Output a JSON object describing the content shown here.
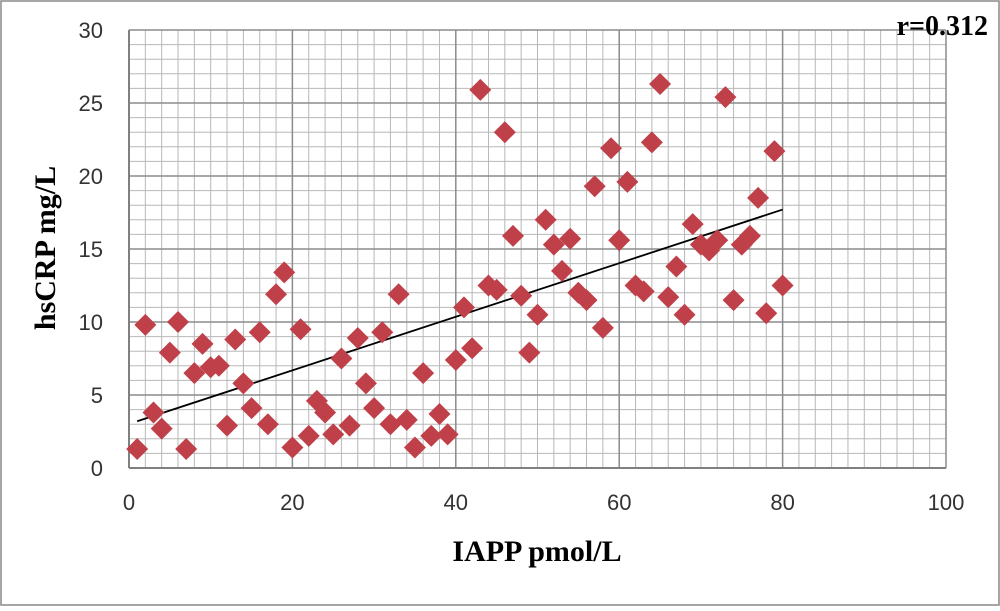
{
  "chart_data": {
    "type": "scatter",
    "title": "",
    "xlabel": "IAPP pmol/L",
    "ylabel": "hsCRP mg/L",
    "annotation": "r=0.312",
    "xlim": [
      0,
      100
    ],
    "ylim": [
      0,
      30
    ],
    "x_ticks": [
      0,
      20,
      40,
      60,
      80,
      100
    ],
    "y_ticks": [
      0,
      5,
      10,
      15,
      20,
      25,
      30
    ],
    "x_minor_step": 2,
    "y_minor_step": 1,
    "grid": true,
    "marker": "diamond",
    "marker_color": "#C0404A",
    "trendline": {
      "type": "linear",
      "x": [
        1,
        80
      ],
      "y": [
        3.2,
        17.7
      ]
    },
    "series": [
      {
        "points": [
          [
            1,
            1.3
          ],
          [
            2,
            9.8
          ],
          [
            3,
            3.8
          ],
          [
            4,
            2.7
          ],
          [
            5,
            7.9
          ],
          [
            6,
            10.0
          ],
          [
            7,
            1.3
          ],
          [
            8,
            6.5
          ],
          [
            9,
            8.5
          ],
          [
            10,
            6.9
          ],
          [
            11,
            7.0
          ],
          [
            12,
            2.9
          ],
          [
            13,
            8.8
          ],
          [
            14,
            5.8
          ],
          [
            15,
            4.1
          ],
          [
            16,
            9.3
          ],
          [
            17,
            3.0
          ],
          [
            18,
            11.9
          ],
          [
            19,
            13.4
          ],
          [
            20,
            1.4
          ],
          [
            21,
            9.5
          ],
          [
            22,
            2.2
          ],
          [
            23,
            4.6
          ],
          [
            24,
            3.8
          ],
          [
            25,
            2.3
          ],
          [
            26,
            7.5
          ],
          [
            27,
            2.9
          ],
          [
            28,
            8.9
          ],
          [
            29,
            5.8
          ],
          [
            30,
            4.1
          ],
          [
            31,
            9.3
          ],
          [
            32,
            3.0
          ],
          [
            33,
            11.9
          ],
          [
            34,
            3.3
          ],
          [
            35,
            1.4
          ],
          [
            36,
            6.5
          ],
          [
            37,
            2.2
          ],
          [
            38,
            3.7
          ],
          [
            39,
            2.3
          ],
          [
            40,
            7.4
          ],
          [
            41,
            11.0
          ],
          [
            42,
            8.2
          ],
          [
            43,
            25.9
          ],
          [
            44,
            12.5
          ],
          [
            45,
            12.2
          ],
          [
            46,
            23.0
          ],
          [
            47,
            15.9
          ],
          [
            48,
            11.8
          ],
          [
            49,
            7.9
          ],
          [
            50,
            10.5
          ],
          [
            51,
            17.0
          ],
          [
            52,
            15.3
          ],
          [
            53,
            13.5
          ],
          [
            54,
            15.7
          ],
          [
            55,
            12.0
          ],
          [
            56,
            11.5
          ],
          [
            57,
            19.3
          ],
          [
            58,
            9.6
          ],
          [
            59,
            21.9
          ],
          [
            60,
            15.6
          ],
          [
            61,
            19.6
          ],
          [
            62,
            12.5
          ],
          [
            63,
            12.1
          ],
          [
            64,
            22.3
          ],
          [
            65,
            26.3
          ],
          [
            66,
            11.7
          ],
          [
            67,
            13.8
          ],
          [
            68,
            10.5
          ],
          [
            69,
            16.7
          ],
          [
            70,
            15.3
          ],
          [
            71,
            14.9
          ],
          [
            72,
            15.6
          ],
          [
            73,
            25.4
          ],
          [
            74,
            11.5
          ],
          [
            75,
            15.3
          ],
          [
            76,
            15.9
          ],
          [
            77,
            18.5
          ],
          [
            78,
            10.6
          ],
          [
            79,
            21.7
          ],
          [
            80,
            12.5
          ]
        ]
      }
    ]
  }
}
